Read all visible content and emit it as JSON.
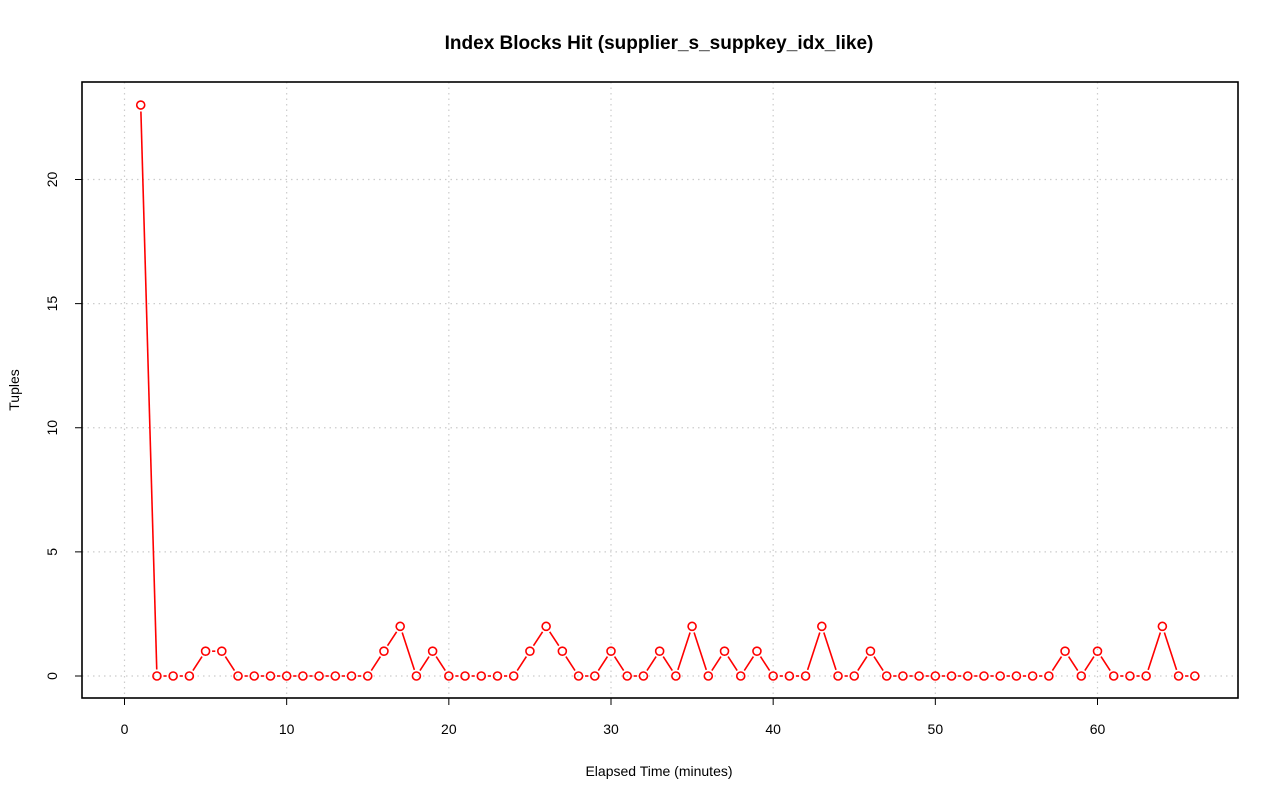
{
  "chart_data": {
    "type": "line",
    "title": "Index Blocks Hit (supplier_s_suppkey_idx_like)",
    "xlabel": "Elapsed Time (minutes)",
    "ylabel": "Tuples",
    "xlim": [
      0,
      68
    ],
    "ylim": [
      0,
      23
    ],
    "x_ticks": [
      0,
      10,
      20,
      30,
      40,
      50,
      60
    ],
    "y_ticks": [
      0,
      5,
      10,
      15,
      20
    ],
    "grid": true,
    "series": [
      {
        "color": "#ff0000",
        "marker": "open-circle",
        "x": [
          1,
          2,
          3,
          4,
          5,
          6,
          7,
          8,
          9,
          10,
          11,
          12,
          13,
          14,
          15,
          16,
          17,
          18,
          19,
          20,
          21,
          22,
          23,
          24,
          25,
          26,
          27,
          28,
          29,
          30,
          31,
          32,
          33,
          34,
          35,
          36,
          37,
          38,
          39,
          40,
          41,
          42,
          43,
          44,
          45,
          46,
          47,
          48,
          49,
          50,
          51,
          52,
          53,
          54,
          55,
          56,
          57,
          58,
          59,
          60,
          61,
          62,
          63,
          64,
          65,
          66
        ],
        "values": [
          23,
          0,
          0,
          0,
          1,
          1,
          0,
          0,
          0,
          0,
          0,
          0,
          0,
          0,
          0,
          1,
          2,
          0,
          1,
          0,
          0,
          0,
          0,
          0,
          1,
          2,
          1,
          0,
          0,
          1,
          0,
          0,
          1,
          0,
          2,
          0,
          1,
          0,
          1,
          0,
          0,
          0,
          2,
          0,
          0,
          1,
          0,
          0,
          0,
          0,
          0,
          0,
          0,
          0,
          0,
          0,
          0,
          1,
          0,
          1,
          0,
          0,
          0,
          2,
          0,
          0
        ]
      }
    ]
  }
}
